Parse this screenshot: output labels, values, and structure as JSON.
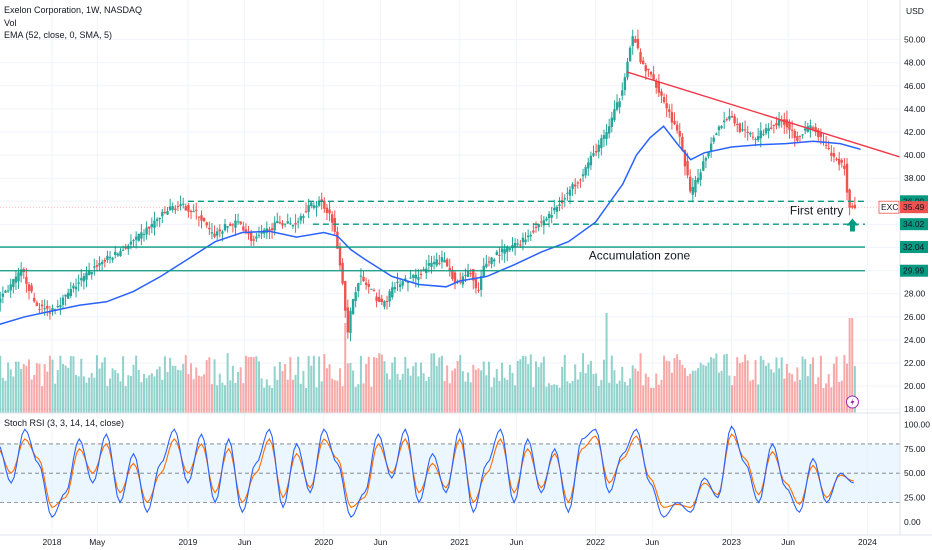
{
  "header": {
    "title": "Exelon Corporation, 1W, NASDAQ",
    "vol_label": "Vol",
    "ema_label": "EMA (52, close, 0, SMA, 5)",
    "rsi_label": "Stoch RSI (3, 3, 14, 14, close)",
    "currency": "USD"
  },
  "annotations": {
    "first_entry": "First entry",
    "accumulation_zone": "Accumulation zone",
    "ticker_tag": "EXC"
  },
  "colors": {
    "up": "#26a69a",
    "down": "#ef5350",
    "ema": "#2962ff",
    "level_line": "#089981",
    "trendline": "#f23645",
    "annotation_text": "#f23645",
    "stoch_k": "#2962ff",
    "stoch_d": "#ff6d00",
    "stoch_band": "#e3f2fd"
  },
  "chart_data": [
    {
      "type": "candlestick",
      "title": "Exelon Corporation, 1W, NASDAQ",
      "ylim": [
        17,
        52
      ],
      "y_ticks": [
        18.0,
        20.0,
        22.0,
        24.0,
        26.0,
        28.0,
        30.0,
        32.0,
        34.0,
        36.0,
        38.0,
        40.0,
        42.0,
        44.0,
        46.0,
        48.0,
        50.0
      ],
      "x_ticks": [
        "2018",
        "May",
        "2019",
        "Jun",
        "2020",
        "Jun",
        "2021",
        "Jun",
        "2022",
        "Jun",
        "2023",
        "Jun",
        "2024"
      ],
      "x_tick_dates": [
        2018.0,
        2018.333,
        2019.0,
        2019.417,
        2020.0,
        2020.417,
        2021.0,
        2021.417,
        2022.0,
        2022.417,
        2023.0,
        2023.417,
        2024.0
      ],
      "price_levels": [
        {
          "value": 36.0,
          "label": "36.00",
          "style": "dashed"
        },
        {
          "value": 34.02,
          "label": "34.02",
          "style": "dashed"
        },
        {
          "value": 32.04,
          "label": "32.04",
          "style": "solid"
        },
        {
          "value": 29.99,
          "label": "29.99",
          "style": "solid"
        }
      ],
      "last_price": {
        "value": 35.49,
        "label": "35.49"
      },
      "trendline": {
        "start": [
          2022.23,
          47.2
        ],
        "end": [
          2024.25,
          39.8
        ]
      },
      "ema_series": {
        "name": "EMA (52, close, 0, SMA, 5)",
        "x": [
          2017.6,
          2017.8,
          2018.0,
          2018.2,
          2018.4,
          2018.6,
          2018.8,
          2019.0,
          2019.2,
          2019.4,
          2019.6,
          2019.8,
          2020.0,
          2020.1,
          2020.2,
          2020.3,
          2020.5,
          2020.7,
          2020.9,
          2021.0,
          2021.2,
          2021.4,
          2021.6,
          2021.8,
          2022.0,
          2022.2,
          2022.3,
          2022.4,
          2022.5,
          2022.6,
          2022.7,
          2022.8,
          2023.0,
          2023.2,
          2023.4,
          2023.6,
          2023.8,
          2023.95
        ],
        "values": [
          25.3,
          26.0,
          26.5,
          27.0,
          27.3,
          28.2,
          29.5,
          31.0,
          32.5,
          33.3,
          33.4,
          32.9,
          33.3,
          33.0,
          31.8,
          31.0,
          29.5,
          28.8,
          28.6,
          29.1,
          29.5,
          30.5,
          31.6,
          32.5,
          34.2,
          37.5,
          40.0,
          41.5,
          42.5,
          41.0,
          39.6,
          40.2,
          40.7,
          40.9,
          41.0,
          41.2,
          41.0,
          40.5
        ]
      },
      "price_path": {
        "x": [
          2017.6,
          2017.7,
          2017.8,
          2017.9,
          2018.0,
          2018.1,
          2018.2,
          2018.35,
          2018.5,
          2018.65,
          2018.8,
          2018.9,
          2019.0,
          2019.1,
          2019.2,
          2019.3,
          2019.4,
          2019.5,
          2019.6,
          2019.7,
          2019.8,
          2019.9,
          2020.0,
          2020.08,
          2020.15,
          2020.2,
          2020.22,
          2020.28,
          2020.35,
          2020.45,
          2020.55,
          2020.7,
          2020.8,
          2020.9,
          2021.0,
          2021.1,
          2021.15,
          2021.2,
          2021.3,
          2021.4,
          2021.5,
          2021.6,
          2021.7,
          2021.8,
          2021.9,
          2022.0,
          2022.1,
          2022.2,
          2022.26,
          2022.3,
          2022.35,
          2022.45,
          2022.55,
          2022.65,
          2022.72,
          2022.8,
          2022.9,
          2023.0,
          2023.1,
          2023.2,
          2023.3,
          2023.4,
          2023.5,
          2023.6,
          2023.7,
          2023.75,
          2023.8,
          2023.85,
          2023.88,
          2023.9
        ],
        "values": [
          27.2,
          28.5,
          30.0,
          27.0,
          26.5,
          27.5,
          28.8,
          30.5,
          31.5,
          32.8,
          34.5,
          35.5,
          35.5,
          34.8,
          33.0,
          33.8,
          34.2,
          32.5,
          33.5,
          34.2,
          34.0,
          35.5,
          36.0,
          34.5,
          30.0,
          24.0,
          27.0,
          29.5,
          28.5,
          27.0,
          28.8,
          29.5,
          30.5,
          31.0,
          28.8,
          30.0,
          27.8,
          30.5,
          31.5,
          32.0,
          32.8,
          34.0,
          35.0,
          36.5,
          38.0,
          40.0,
          42.0,
          45.0,
          48.5,
          50.5,
          48.0,
          46.5,
          44.0,
          41.0,
          36.5,
          39.0,
          42.0,
          43.5,
          42.0,
          41.5,
          42.5,
          43.0,
          41.5,
          42.5,
          41.0,
          40.0,
          39.5,
          39.0,
          35.5,
          35.49
        ]
      },
      "volume_spikes": [
        {
          "x": 2020.15,
          "rel": 0.9
        },
        {
          "x": 2022.08,
          "rel": 1.0
        },
        {
          "x": 2023.88,
          "rel": 0.95
        }
      ]
    },
    {
      "type": "line",
      "title": "Stoch RSI (3, 3, 14, 14, close)",
      "ylim": [
        -8,
        108
      ],
      "y_ticks": [
        0.0,
        25.0,
        50.0,
        75.0,
        100.0
      ],
      "band": [
        20,
        80
      ],
      "series": [
        {
          "name": "K",
          "color": "#2962ff"
        },
        {
          "name": "D",
          "color": "#ff6d00"
        }
      ],
      "x": [
        2017.6,
        2017.7,
        2017.8,
        2017.9,
        2018.0,
        2018.1,
        2018.2,
        2018.3,
        2018.4,
        2018.5,
        2018.6,
        2018.7,
        2018.8,
        2018.9,
        2019.0,
        2019.1,
        2019.2,
        2019.3,
        2019.4,
        2019.5,
        2019.6,
        2019.7,
        2019.8,
        2019.9,
        2020.0,
        2020.1,
        2020.2,
        2020.3,
        2020.4,
        2020.5,
        2020.6,
        2020.7,
        2020.8,
        2020.9,
        2021.0,
        2021.1,
        2021.2,
        2021.3,
        2021.4,
        2021.5,
        2021.6,
        2021.7,
        2021.8,
        2021.9,
        2022.0,
        2022.1,
        2022.2,
        2022.3,
        2022.4,
        2022.5,
        2022.6,
        2022.7,
        2022.8,
        2022.9,
        2023.0,
        2023.1,
        2023.2,
        2023.3,
        2023.4,
        2023.5,
        2023.6,
        2023.7,
        2023.8,
        2023.9
      ],
      "k_values": [
        80,
        40,
        95,
        60,
        5,
        30,
        85,
        40,
        90,
        20,
        70,
        10,
        60,
        95,
        40,
        90,
        20,
        85,
        10,
        60,
        95,
        15,
        80,
        30,
        95,
        60,
        5,
        30,
        90,
        45,
        95,
        20,
        70,
        30,
        95,
        10,
        60,
        95,
        20,
        85,
        30,
        75,
        10,
        85,
        95,
        30,
        70,
        95,
        40,
        5,
        20,
        10,
        45,
        25,
        98,
        60,
        20,
        80,
        35,
        10,
        65,
        20,
        50,
        40
      ],
      "d_values": [
        75,
        50,
        85,
        65,
        15,
        25,
        75,
        50,
        80,
        30,
        60,
        20,
        50,
        85,
        50,
        80,
        30,
        75,
        20,
        50,
        85,
        25,
        70,
        35,
        85,
        65,
        15,
        25,
        80,
        50,
        85,
        30,
        60,
        35,
        85,
        20,
        50,
        85,
        30,
        75,
        35,
        70,
        20,
        75,
        88,
        40,
        65,
        88,
        45,
        15,
        18,
        15,
        40,
        28,
        90,
        65,
        28,
        72,
        40,
        18,
        58,
        25,
        48,
        42
      ]
    }
  ]
}
